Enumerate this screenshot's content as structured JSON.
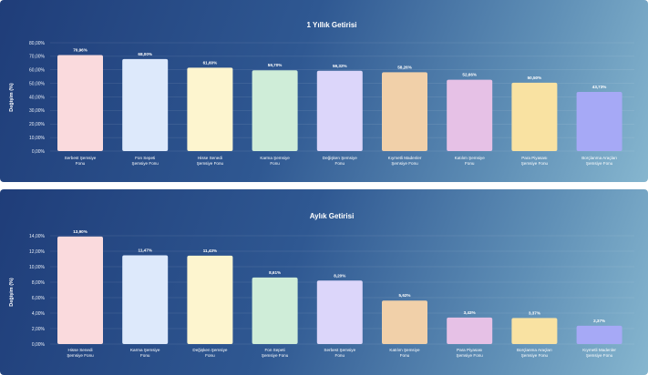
{
  "chart_data": [
    {
      "type": "bar",
      "title": "1 Yıllık Getirisi",
      "ylabel": "Değişim (%)",
      "xlabel": "",
      "ylim": [
        0,
        80
      ],
      "yticks": [
        "0,00%",
        "10,00%",
        "20,00%",
        "30,00%",
        "40,00%",
        "50,00%",
        "60,00%",
        "70,00%",
        "80,00%"
      ],
      "grid": true,
      "categories": [
        [
          "Serbest Şemsiye",
          "Fonu"
        ],
        [
          "Fon Sepeti",
          "Şemsiye Fonu"
        ],
        [
          "Hisse Senedi",
          "Şemsiye Fonu"
        ],
        [
          "Karma Şemsiye",
          "Fonu"
        ],
        [
          "Değişken Şemsiye",
          "Fonu"
        ],
        [
          "Kıymetli Madenler",
          "Şemsiye Fonu"
        ],
        [
          "Katılım Şemsiye",
          "Fonu"
        ],
        [
          "Para Piyasası",
          "Şemsiye Fonu"
        ],
        [
          "Borçlanma Araçları",
          "Şemsiye Fonu"
        ]
      ],
      "values": [
        70.96,
        68.0,
        61.6,
        59.7,
        59.32,
        58.26,
        52.66,
        50.5,
        43.73
      ],
      "labels": [
        "70,96%",
        "68,00%",
        "61,60%",
        "59,70%",
        "59,32%",
        "58,26%",
        "52,66%",
        "50,50%",
        "43,73%"
      ],
      "colors": [
        "#fadadd",
        "#dde9fb",
        "#fdf5cf",
        "#cfedd8",
        "#dcd6fa",
        "#f1d0a9",
        "#e6c1e6",
        "#f9e2a2",
        "#a6a9f6"
      ]
    },
    {
      "type": "bar",
      "title": "Aylık Getirisi",
      "ylabel": "Değişim (%)",
      "xlabel": "",
      "ylim": [
        0,
        14
      ],
      "yticks": [
        "0,00%",
        "2,00%",
        "4,00%",
        "6,00%",
        "8,00%",
        "10,00%",
        "12,00%",
        "14,00%"
      ],
      "grid": true,
      "categories": [
        [
          "Hisse Senedi",
          "Şemsiye Fonu"
        ],
        [
          "Karma Şemsiye",
          "Fonu"
        ],
        [
          "Değişken Şemsiye",
          "Fonu"
        ],
        [
          "Fon Sepeti",
          "Şemsiye Fonu"
        ],
        [
          "Serbest Şemsiye",
          "Fonu"
        ],
        [
          "Katılım Şemsiye",
          "Fonu"
        ],
        [
          "Para Piyasası",
          "Şemsiye Fonu"
        ],
        [
          "Borçlanma Araçları",
          "Şemsiye Fonu"
        ],
        [
          "Kıymetli Madenler",
          "Şemsiye Fonu"
        ]
      ],
      "values": [
        13.9,
        11.47,
        11.43,
        8.61,
        8.2,
        5.62,
        3.43,
        3.37,
        2.37
      ],
      "labels": [
        "13,90%",
        "11,47%",
        "11,43%",
        "8,61%",
        "8,20%",
        "5,62%",
        "3,43%",
        "3,37%",
        "2,37%"
      ],
      "colors": [
        "#fadadd",
        "#dde9fb",
        "#fdf5cf",
        "#cfedd8",
        "#dcd6fa",
        "#f1d0a9",
        "#e6c1e6",
        "#f9e2a2",
        "#a6a9f6"
      ]
    }
  ]
}
